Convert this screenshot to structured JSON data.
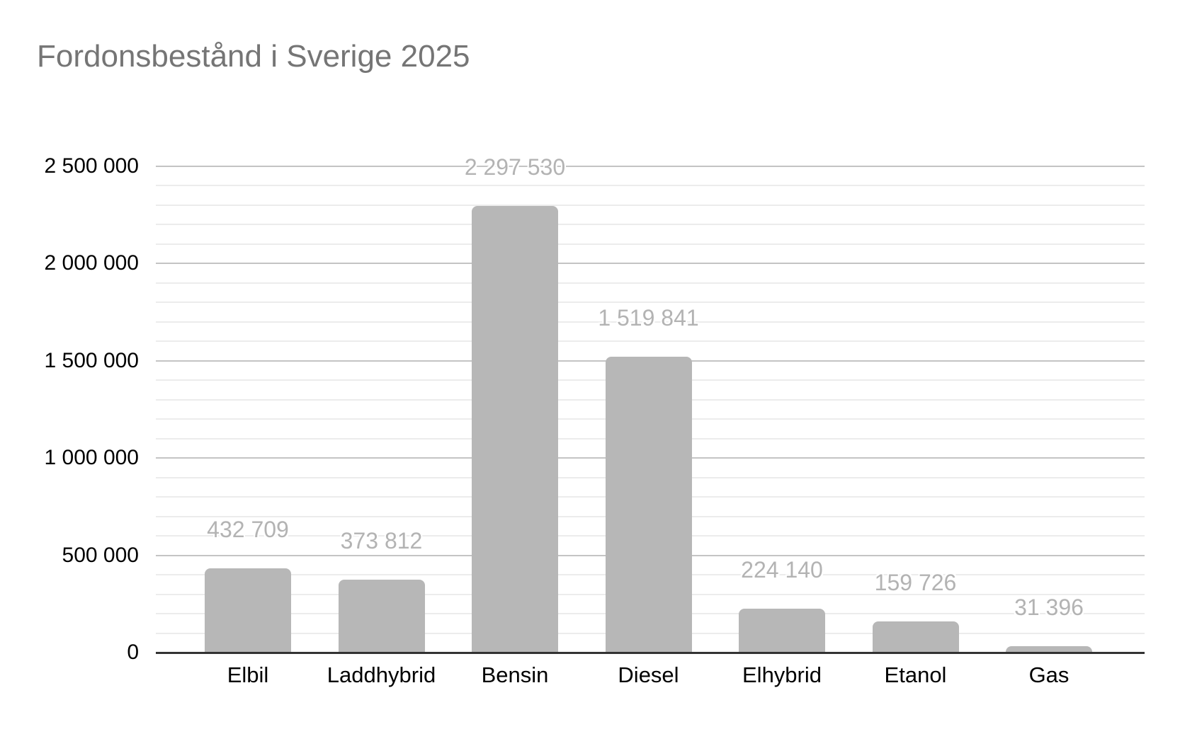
{
  "title": "Fordonsbestånd i Sverige 2025",
  "colors": {
    "background": "#ffffff",
    "title_text": "#757575",
    "bar": "#b7b7b7",
    "data_label": "#b3b3b3",
    "axis_label": "#000000",
    "major_gridline": "#c4c4c4",
    "minor_gridline": "#ececec",
    "axis_baseline": "#333333"
  },
  "chart_data": {
    "type": "bar",
    "title": "Fordonsbestånd i Sverige 2025",
    "categories": [
      "Elbil",
      "Laddhybrid",
      "Bensin",
      "Diesel",
      "Elhybrid",
      "Etanol",
      "Gas"
    ],
    "values": [
      432709,
      373812,
      2297530,
      1519841,
      224140,
      159726,
      31396
    ],
    "value_labels": [
      "432 709",
      "373 812",
      "2 297 530",
      "1 519 841",
      "224 140",
      "159 726",
      "31 396"
    ],
    "xlabel": "",
    "ylabel": "",
    "ylim": [
      0,
      2500000
    ],
    "y_major_step": 500000,
    "y_minor_step": 100000,
    "y_ticks": [
      0,
      500000,
      1000000,
      1500000,
      2000000,
      2500000
    ],
    "y_tick_labels": [
      "0",
      "500 000",
      "1 000 000",
      "1 500 000",
      "2 000 000",
      "2 500 000"
    ],
    "grid": "on",
    "legend": "none",
    "data_labels": "above-bars"
  }
}
